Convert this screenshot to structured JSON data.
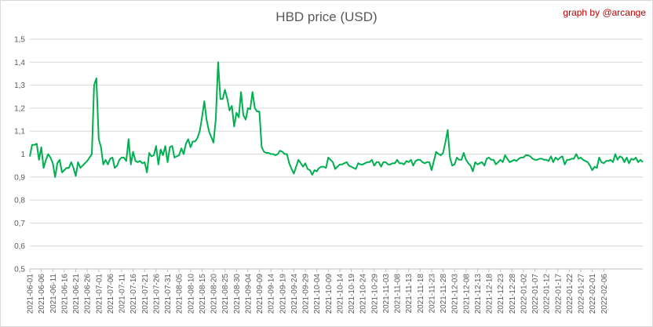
{
  "chart_data": {
    "type": "line",
    "title": "HBD price (USD)",
    "credit": "graph by @arcange",
    "xlabel": "",
    "ylabel": "",
    "ylim": [
      0.5,
      1.5
    ],
    "yticks": [
      "0,5",
      "0,6",
      "0,7",
      "0,8",
      "0,9",
      "1",
      "1,1",
      "1,2",
      "1,3",
      "1,4",
      "1,5"
    ],
    "grid": true,
    "legend": "none",
    "colors": {
      "line": "#00b050",
      "grid": "#d9d9d9",
      "axis": "#bfbfbf",
      "text": "#595959",
      "credit": "#c00000"
    },
    "x_start": "2021-06-01",
    "x_tick_every_days": 5,
    "x_tick_labels": [
      "2021-06-01",
      "2021-06-06",
      "2021-06-11",
      "2021-06-16",
      "2021-06-21",
      "2021-06-26",
      "2021-07-01",
      "2021-07-06",
      "2021-07-11",
      "2021-07-16",
      "2021-07-21",
      "2021-07-26",
      "2021-07-31",
      "2021-08-05",
      "2021-08-10",
      "2021-08-15",
      "2021-08-20",
      "2021-08-25",
      "2021-08-30",
      "2021-09-04",
      "2021-09-09",
      "2021-09-14",
      "2021-09-19",
      "2021-09-24",
      "2021-09-29",
      "2021-10-04",
      "2021-10-09",
      "2021-10-14",
      "2021-10-19",
      "2021-10-24",
      "2021-10-29",
      "2021-11-03",
      "2021-11-08",
      "2021-11-13",
      "2021-11-18",
      "2021-11-23",
      "2021-11-28",
      "2021-12-03",
      "2021-12-08",
      "2021-12-13",
      "2021-12-18",
      "2021-12-23",
      "2021-12-28",
      "2022-01-02",
      "2022-01-07",
      "2022-01-12",
      "2022-01-17",
      "2022-01-22",
      "2022-01-27",
      "2022-02-01",
      "2022-02-06"
    ],
    "series": [
      {
        "name": "",
        "values": [
          0.99,
          1.04,
          1.04,
          1.045,
          0.975,
          1.03,
          0.94,
          0.975,
          1.0,
          0.985,
          0.96,
          0.9,
          0.96,
          0.975,
          0.92,
          0.93,
          0.94,
          0.94,
          0.965,
          0.94,
          0.905,
          0.965,
          0.94,
          0.95,
          0.96,
          0.97,
          0.985,
          1.0,
          1.3,
          1.33,
          1.065,
          1.03,
          0.955,
          0.975,
          0.955,
          0.98,
          0.985,
          0.94,
          0.95,
          0.975,
          0.985,
          0.985,
          0.97,
          1.065,
          0.955,
          1.01,
          0.97,
          0.965,
          0.97,
          0.96,
          0.965,
          0.92,
          1.005,
          0.99,
          0.995,
          1.035,
          0.955,
          1.02,
          0.995,
          1.035,
          0.965,
          1.03,
          1.035,
          0.985,
          0.99,
          0.995,
          1.025,
          1.0,
          1.045,
          1.065,
          1.03,
          1.055,
          1.055,
          1.07,
          1.1,
          1.16,
          1.23,
          1.15,
          1.1,
          1.075,
          1.05,
          1.15,
          1.4,
          1.24,
          1.24,
          1.28,
          1.24,
          1.19,
          1.21,
          1.12,
          1.18,
          1.16,
          1.27,
          1.17,
          1.15,
          1.2,
          1.195,
          1.27,
          1.2,
          1.185,
          1.185,
          1.03,
          1.01,
          1.005,
          1.005,
          1.0,
          1.0,
          0.995,
          1.0,
          1.015,
          1.01,
          1.0,
          1.0,
          0.96,
          0.935,
          0.915,
          0.945,
          0.975,
          0.96,
          0.945,
          0.96,
          0.935,
          0.93,
          0.91,
          0.93,
          0.925,
          0.94,
          0.945,
          0.945,
          0.94,
          0.985,
          0.975,
          0.965,
          0.935,
          0.945,
          0.955,
          0.955,
          0.96,
          0.965,
          0.95,
          0.945,
          0.94,
          0.935,
          0.96,
          0.955,
          0.955,
          0.96,
          0.965,
          0.965,
          0.975,
          0.95,
          0.965,
          0.965,
          0.945,
          0.965,
          0.965,
          0.955,
          0.955,
          0.96,
          0.96,
          0.975,
          0.96,
          0.96,
          0.955,
          0.97,
          0.965,
          0.975,
          0.95,
          0.97,
          0.975,
          0.975,
          0.965,
          0.96,
          0.965,
          0.965,
          0.93,
          0.97,
          1.01,
          1.0,
          0.995,
          1.005,
          1.05,
          1.105,
          0.985,
          0.95,
          0.955,
          0.985,
          0.975,
          0.975,
          1.005,
          0.975,
          0.96,
          0.95,
          0.925,
          0.965,
          0.955,
          0.96,
          0.965,
          0.95,
          0.98,
          0.985,
          0.975,
          0.975,
          0.955,
          0.965,
          0.975,
          0.965,
          0.995,
          0.98,
          0.965,
          0.97,
          0.975,
          0.97,
          0.98,
          0.985,
          0.985,
          0.995,
          0.995,
          0.99,
          0.98,
          0.975,
          0.975,
          0.98,
          0.98,
          0.975,
          0.975,
          0.97,
          0.99,
          0.965,
          0.985,
          0.975,
          0.985,
          0.99,
          0.955,
          0.975,
          0.975,
          0.98,
          0.98,
          1.0,
          0.98,
          0.985,
          0.975,
          0.97,
          0.965,
          0.95,
          0.93,
          0.945,
          0.94,
          0.985,
          0.965,
          0.96,
          0.97,
          0.97,
          0.975,
          0.965,
          1.0,
          0.975,
          0.99,
          0.985,
          0.965,
          0.985,
          0.96,
          0.98,
          0.975,
          0.985,
          0.965,
          0.975,
          0.965
        ]
      }
    ]
  }
}
